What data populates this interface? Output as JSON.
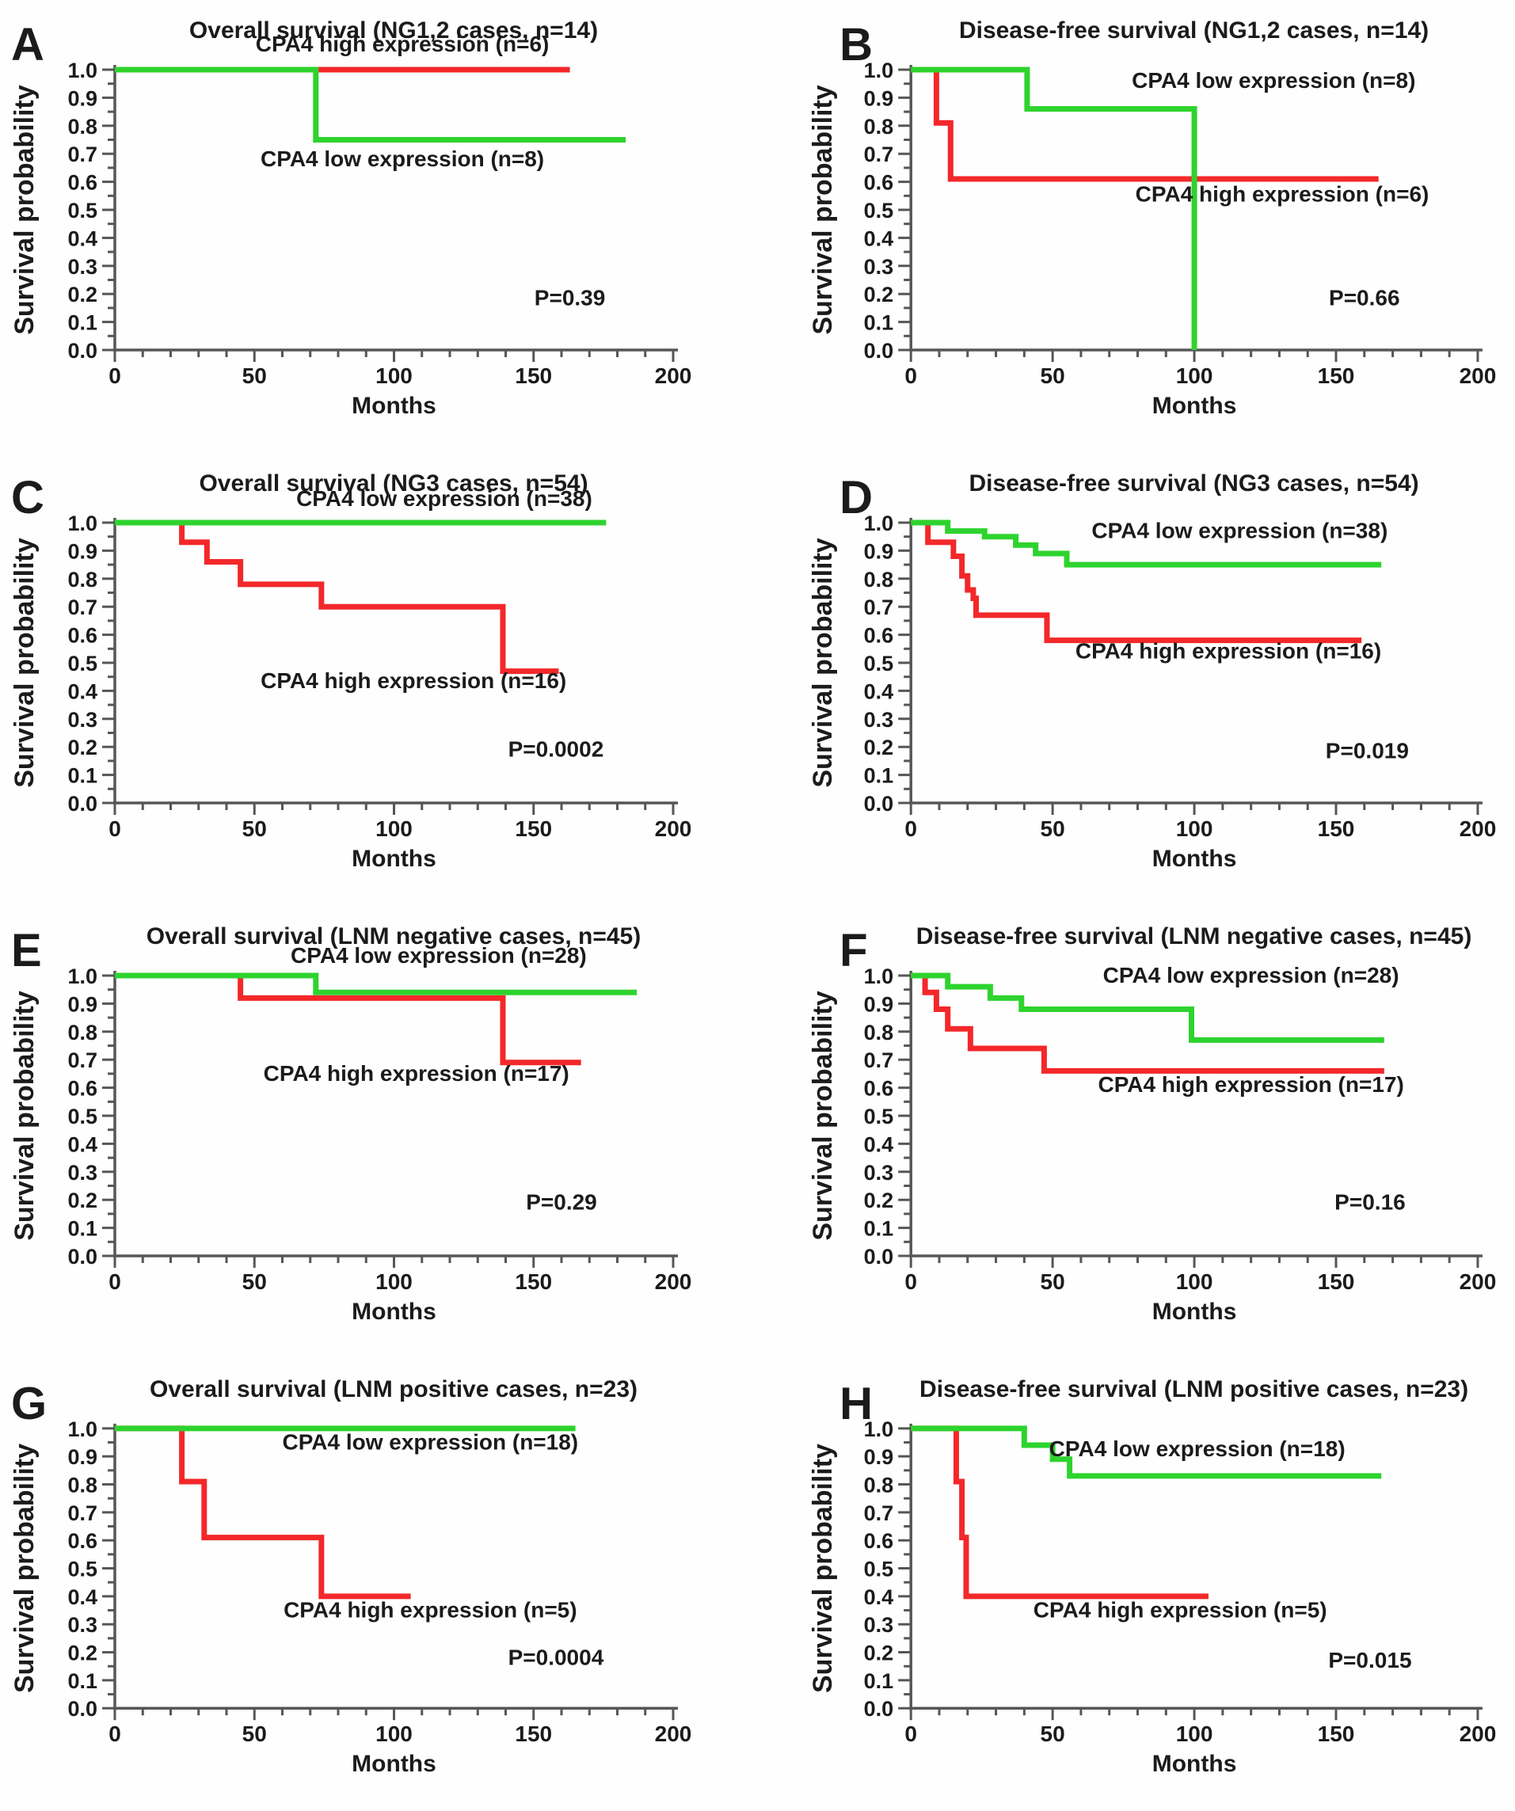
{
  "figure": {
    "colors": {
      "red": "#f3282a",
      "green": "#2ed32e",
      "axis": "#565656",
      "text": "#1b1b1b"
    },
    "axes": {
      "x": {
        "label": "Months",
        "min": 0,
        "max": 200,
        "major_ticks": [
          0,
          50,
          100,
          150,
          200
        ],
        "minor_step": 10
      },
      "y": {
        "label": "Survival probability",
        "min": 0,
        "max": 1,
        "major_tick_labels": [
          "0.0",
          "0.1",
          "0.2",
          "0.3",
          "0.4",
          "0.5",
          "0.6",
          "0.7",
          "0.8",
          "0.9",
          "1.0"
        ],
        "major_step": 0.1,
        "minor_step": 0.05
      }
    }
  },
  "chart_data": [
    {
      "type": "line",
      "letter": "A",
      "title": "Overall survival (NG1,2 cases, n=14)",
      "xlabel": "Months",
      "ylabel": "Survival probability",
      "xlim": [
        0,
        200
      ],
      "ylim": [
        0,
        1
      ],
      "p_value": {
        "text": "P=0.39",
        "x": 163,
        "y": 0.16
      },
      "series": [
        {
          "name": "CPA4 high expression",
          "color": "red",
          "label": {
            "text": "CPA4 high expression (n=6)",
            "x": 103,
            "y": 1.065
          },
          "steps": [
            [
              0,
              1.0
            ],
            [
              163,
              1.0
            ]
          ]
        },
        {
          "name": "CPA4 low expression",
          "color": "green",
          "label": {
            "text": "CPA4 low expression (n=8)",
            "x": 103,
            "y": 0.655
          },
          "steps": [
            [
              0,
              1.0
            ],
            [
              72,
              1.0
            ],
            [
              72,
              0.75
            ],
            [
              183,
              0.75
            ]
          ]
        }
      ]
    },
    {
      "type": "line",
      "letter": "B",
      "title": "Disease-free survival (NG1,2 cases, n=14)",
      "xlabel": "Months",
      "ylabel": "Survival probability",
      "xlim": [
        0,
        200
      ],
      "ylim": [
        0,
        1
      ],
      "p_value": {
        "text": "P=0.66",
        "x": 160,
        "y": 0.16
      },
      "series": [
        {
          "name": "CPA4 high expression",
          "color": "red",
          "label": {
            "text": "CPA4 high expression (n=6)",
            "x": 131,
            "y": 0.53
          },
          "steps": [
            [
              0,
              1.0
            ],
            [
              9,
              1.0
            ],
            [
              9,
              0.81
            ],
            [
              14,
              0.81
            ],
            [
              14,
              0.61
            ],
            [
              165,
              0.61
            ]
          ]
        },
        {
          "name": "CPA4 low expression",
          "color": "green",
          "label": {
            "text": "CPA4 low expression (n=8)",
            "x": 128,
            "y": 0.935
          },
          "steps": [
            [
              0,
              1.0
            ],
            [
              41,
              1.0
            ],
            [
              41,
              0.86
            ],
            [
              100,
              0.86
            ],
            [
              100,
              0.0
            ]
          ]
        }
      ]
    },
    {
      "type": "line",
      "letter": "C",
      "title": "Overall survival (NG3 cases, n=54)",
      "xlabel": "Months",
      "ylabel": "Survival probability",
      "xlim": [
        0,
        200
      ],
      "ylim": [
        0,
        1
      ],
      "p_value": {
        "text": "P=0.0002",
        "x": 158,
        "y": 0.165
      },
      "series": [
        {
          "name": "CPA4 high expression",
          "color": "red",
          "label": {
            "text": "CPA4 high expression (n=16)",
            "x": 107,
            "y": 0.41
          },
          "steps": [
            [
              0,
              1.0
            ],
            [
              24,
              1.0
            ],
            [
              24,
              0.93
            ],
            [
              33,
              0.93
            ],
            [
              33,
              0.86
            ],
            [
              45,
              0.86
            ],
            [
              45,
              0.78
            ],
            [
              74,
              0.78
            ],
            [
              74,
              0.7
            ],
            [
              139,
              0.7
            ],
            [
              139,
              0.47
            ],
            [
              159,
              0.47
            ]
          ]
        },
        {
          "name": "CPA4 low expression",
          "color": "green",
          "label": {
            "text": "CPA4 low expression (n=38)",
            "x": 118,
            "y": 1.06
          },
          "steps": [
            [
              0,
              1.0
            ],
            [
              176,
              1.0
            ]
          ]
        }
      ]
    },
    {
      "type": "line",
      "letter": "D",
      "title": "Disease-free survival (NG3 cases, n=54)",
      "xlabel": "Months",
      "ylabel": "Survival probability",
      "xlim": [
        0,
        200
      ],
      "ylim": [
        0,
        1
      ],
      "p_value": {
        "text": "P=0.019",
        "x": 161,
        "y": 0.16
      },
      "series": [
        {
          "name": "CPA4 high expression",
          "color": "red",
          "label": {
            "text": "CPA4 high expression (n=16)",
            "x": 112,
            "y": 0.515
          },
          "steps": [
            [
              0,
              1.0
            ],
            [
              6,
              1.0
            ],
            [
              6,
              0.93
            ],
            [
              15,
              0.93
            ],
            [
              15,
              0.88
            ],
            [
              18,
              0.88
            ],
            [
              18,
              0.81
            ],
            [
              20,
              0.81
            ],
            [
              20,
              0.76
            ],
            [
              22,
              0.76
            ],
            [
              22,
              0.73
            ],
            [
              23,
              0.73
            ],
            [
              23,
              0.67
            ],
            [
              48,
              0.67
            ],
            [
              48,
              0.58
            ],
            [
              159,
              0.58
            ]
          ]
        },
        {
          "name": "CPA4 low expression",
          "color": "green",
          "label": {
            "text": "CPA4 low expression (n=38)",
            "x": 116,
            "y": 0.945
          },
          "steps": [
            [
              0,
              1.0
            ],
            [
              13,
              1.0
            ],
            [
              13,
              0.97
            ],
            [
              26,
              0.97
            ],
            [
              26,
              0.95
            ],
            [
              37,
              0.95
            ],
            [
              37,
              0.92
            ],
            [
              44,
              0.92
            ],
            [
              44,
              0.89
            ],
            [
              55,
              0.89
            ],
            [
              55,
              0.85
            ],
            [
              166,
              0.85
            ]
          ]
        }
      ]
    },
    {
      "type": "line",
      "letter": "E",
      "title": "Overall survival (LNM negative cases, n=45)",
      "xlabel": "Months",
      "ylabel": "Survival probability",
      "xlim": [
        0,
        200
      ],
      "ylim": [
        0,
        1
      ],
      "p_value": {
        "text": "P=0.29",
        "x": 160,
        "y": 0.165
      },
      "series": [
        {
          "name": "CPA4 high expression",
          "color": "red",
          "label": {
            "text": "CPA4 high expression (n=17)",
            "x": 108,
            "y": 0.625
          },
          "steps": [
            [
              0,
              1.0
            ],
            [
              45,
              1.0
            ],
            [
              45,
              0.92
            ],
            [
              139,
              0.92
            ],
            [
              139,
              0.69
            ],
            [
              167,
              0.69
            ]
          ]
        },
        {
          "name": "CPA4 low expression",
          "color": "green",
          "label": {
            "text": "CPA4 low expression (n=28)",
            "x": 116,
            "y": 1.045
          },
          "steps": [
            [
              0,
              1.0
            ],
            [
              72,
              1.0
            ],
            [
              72,
              0.94
            ],
            [
              187,
              0.94
            ]
          ]
        }
      ]
    },
    {
      "type": "line",
      "letter": "F",
      "title": "Disease-free survival (LNM negative cases, n=45)",
      "xlabel": "Months",
      "ylabel": "Survival probability",
      "xlim": [
        0,
        200
      ],
      "ylim": [
        0,
        1
      ],
      "p_value": {
        "text": "P=0.16",
        "x": 162,
        "y": 0.165
      },
      "series": [
        {
          "name": "CPA4 high expression",
          "color": "red",
          "label": {
            "text": "CPA4 high expression (n=17)",
            "x": 120,
            "y": 0.585
          },
          "steps": [
            [
              0,
              1.0
            ],
            [
              5,
              1.0
            ],
            [
              5,
              0.94
            ],
            [
              9,
              0.94
            ],
            [
              9,
              0.88
            ],
            [
              13,
              0.88
            ],
            [
              13,
              0.81
            ],
            [
              21,
              0.81
            ],
            [
              21,
              0.74
            ],
            [
              47,
              0.74
            ],
            [
              47,
              0.66
            ],
            [
              167,
              0.66
            ]
          ]
        },
        {
          "name": "CPA4 low expression",
          "color": "green",
          "label": {
            "text": "CPA4 low expression (n=28)",
            "x": 120,
            "y": 0.975
          },
          "steps": [
            [
              0,
              1.0
            ],
            [
              13,
              1.0
            ],
            [
              13,
              0.96
            ],
            [
              28,
              0.96
            ],
            [
              28,
              0.92
            ],
            [
              39,
              0.92
            ],
            [
              39,
              0.88
            ],
            [
              99,
              0.88
            ],
            [
              99,
              0.77
            ],
            [
              167,
              0.77
            ]
          ]
        }
      ]
    },
    {
      "type": "line",
      "letter": "G",
      "title": "Overall survival (LNM positive cases, n=23)",
      "xlabel": "Months",
      "ylabel": "Survival probability",
      "xlim": [
        0,
        200
      ],
      "ylim": [
        0,
        1
      ],
      "p_value": {
        "text": "P=0.0004",
        "x": 158,
        "y": 0.155
      },
      "series": [
        {
          "name": "CPA4 high expression",
          "color": "red",
          "label": {
            "text": "CPA4 high expression (n=5)",
            "x": 113,
            "y": 0.325
          },
          "steps": [
            [
              0,
              1.0
            ],
            [
              24,
              1.0
            ],
            [
              24,
              0.81
            ],
            [
              32,
              0.81
            ],
            [
              32,
              0.61
            ],
            [
              74,
              0.61
            ],
            [
              74,
              0.4
            ],
            [
              106,
              0.4
            ]
          ]
        },
        {
          "name": "CPA4 low expression",
          "color": "green",
          "label": {
            "text": "CPA4 low expression (n=18)",
            "x": 113,
            "y": 0.925
          },
          "steps": [
            [
              0,
              1.0
            ],
            [
              165,
              1.0
            ]
          ]
        }
      ]
    },
    {
      "type": "line",
      "letter": "H",
      "title": "Disease-free survival (LNM positive cases, n=23)",
      "xlabel": "Months",
      "ylabel": "Survival probability",
      "xlim": [
        0,
        200
      ],
      "ylim": [
        0,
        1
      ],
      "p_value": {
        "text": "P=0.015",
        "x": 162,
        "y": 0.145
      },
      "series": [
        {
          "name": "CPA4 high expression",
          "color": "red",
          "label": {
            "text": "CPA4 high expression (n=5)",
            "x": 95,
            "y": 0.325
          },
          "steps": [
            [
              0,
              1.0
            ],
            [
              16,
              1.0
            ],
            [
              16,
              0.81
            ],
            [
              18,
              0.81
            ],
            [
              18,
              0.61
            ],
            [
              19.5,
              0.61
            ],
            [
              19.5,
              0.4
            ],
            [
              105,
              0.4
            ]
          ]
        },
        {
          "name": "CPA4 low expression",
          "color": "green",
          "label": {
            "text": "CPA4 low expression (n=18)",
            "x": 101,
            "y": 0.9
          },
          "steps": [
            [
              0,
              1.0
            ],
            [
              40,
              1.0
            ],
            [
              40,
              0.94
            ],
            [
              50,
              0.94
            ],
            [
              50,
              0.89
            ],
            [
              56,
              0.89
            ],
            [
              56,
              0.83
            ],
            [
              166,
              0.83
            ]
          ]
        }
      ]
    }
  ]
}
